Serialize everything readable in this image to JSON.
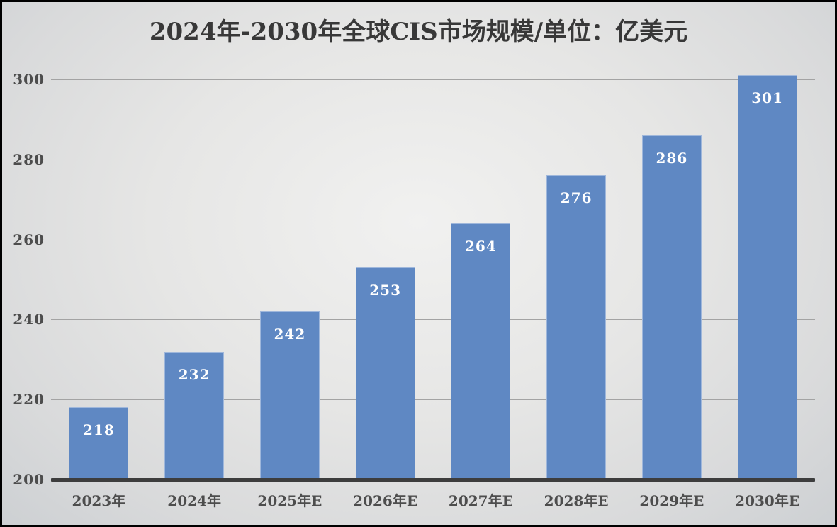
{
  "title": "2024年-2030年全球CIS市场规模/单位：亿美元",
  "chart_data": {
    "type": "bar",
    "title": "2024年-2030年全球CIS市场规模/单位：亿美元",
    "categories": [
      "2023年",
      "2024年",
      "2025年E",
      "2026年E",
      "2027年E",
      "2028年E",
      "2029年E",
      "2030年E"
    ],
    "values": [
      218,
      232,
      242,
      253,
      264,
      276,
      286,
      301
    ],
    "xlabel": "",
    "ylabel": "",
    "unit": "亿美元",
    "ylim": [
      200,
      310
    ],
    "yticks": [
      200,
      220,
      240,
      260,
      280,
      300
    ],
    "grid": true,
    "legend": false,
    "bar_color": "#5f88c3",
    "value_label_color": "#ffffff",
    "tick_label_color": "#4d4d4d",
    "gridline_color": "#a3a3a3",
    "axis_line_color": "#3d3d3d",
    "background_color": "#e3e4e4",
    "frame_border_color": "#000000"
  }
}
